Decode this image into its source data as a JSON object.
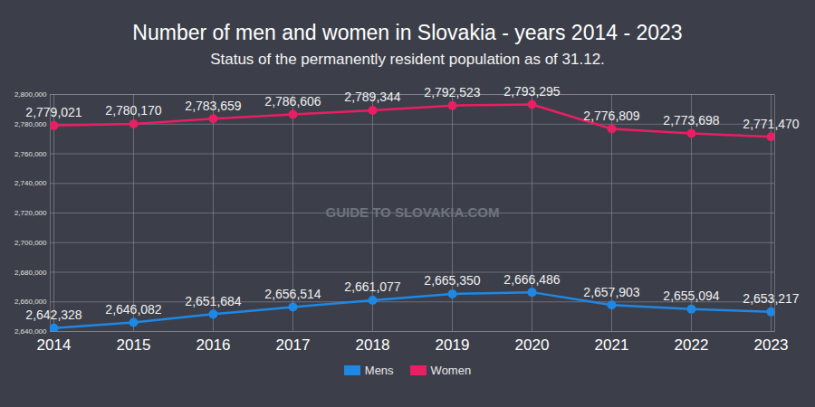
{
  "chart_data": {
    "type": "line",
    "title": "Number of men and women in Slovakia - years 2014 - 2023",
    "subtitle": "Status of the permanently resident population as of 31.12.",
    "annotations": [
      "GUIDE TO SLOVAKIA.COM"
    ],
    "categories": [
      "2014",
      "2015",
      "2016",
      "2017",
      "2018",
      "2019",
      "2020",
      "2021",
      "2022",
      "2023"
    ],
    "series": [
      {
        "name": "Mens",
        "color": "#1e88e5",
        "marker": "circle",
        "values": [
          2642328,
          2646082,
          2651684,
          2656514,
          2661077,
          2665350,
          2666486,
          2657903,
          2655094,
          2653217
        ],
        "value_labels": [
          "2,642,328",
          "2,646,082",
          "2,651,684",
          "2,656,514",
          "2,661,077",
          "2,665,350",
          "2,666,486",
          "2,657,903",
          "2,655,094",
          "2,653,217"
        ]
      },
      {
        "name": "Women",
        "color": "#e91e63",
        "marker": "circle",
        "values": [
          2779021,
          2780170,
          2783659,
          2786606,
          2789344,
          2792523,
          2793295,
          2776809,
          2773698,
          2771470
        ],
        "value_labels": [
          "2,779,021",
          "2,780,170",
          "2,783,659",
          "2,786,606",
          "2,789,344",
          "2,792,523",
          "2,793,295",
          "2,776,809",
          "2,773,698",
          "2,771,470"
        ]
      }
    ],
    "ylim": [
      2640000,
      2800000
    ],
    "yticks": [
      {
        "value": 2640000,
        "label": "2,640,000"
      },
      {
        "value": 2660000,
        "label": "2,660,000"
      },
      {
        "value": 2680000,
        "label": "2,680,000"
      },
      {
        "value": 2700000,
        "label": "2,700,000"
      },
      {
        "value": 2720000,
        "label": "2,720,000"
      },
      {
        "value": 2740000,
        "label": "2,740,000"
      },
      {
        "value": 2760000,
        "label": "2,760,000"
      },
      {
        "value": 2780000,
        "label": "2,780,000"
      },
      {
        "value": 2800000,
        "label": "2,800,000"
      }
    ],
    "grid": true,
    "legend": "bottom",
    "data_labels": true
  }
}
